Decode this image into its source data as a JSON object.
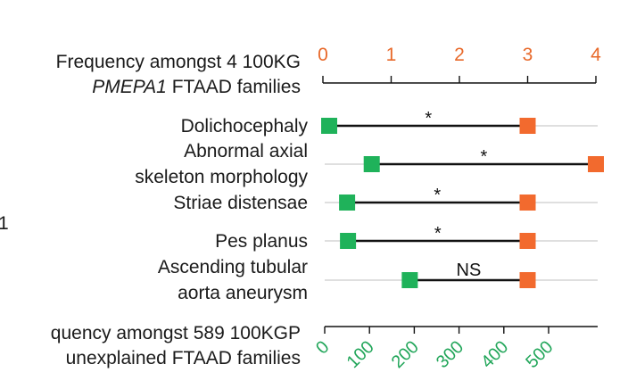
{
  "chart_data": {
    "type": "dumbbell",
    "top_axis": {
      "label_line1": "Frequency amongst 4 100KG",
      "label_line2_italic": "PMEPA1",
      "label_line2_rest": " FTAAD families",
      "ticks": [
        "0",
        "1",
        "2",
        "3",
        "4"
      ],
      "range": [
        0,
        4
      ],
      "color": "#e8692a"
    },
    "bottom_axis": {
      "label_line1": "quency amongst 589 100KGP",
      "label_line2": "unexplained FTAAD families",
      "ticks": [
        "0",
        "100",
        "200",
        "300",
        "400",
        "500"
      ],
      "range": [
        0,
        589
      ],
      "color": "#22a65a"
    },
    "left_edge_fragment": "1",
    "rows": [
      {
        "label_lines": [
          "Dolichocephaly"
        ],
        "bottom_value": 10,
        "top_value": 3,
        "significance": "*"
      },
      {
        "label_lines": [
          "Abnormal axial",
          "skeleton morphology"
        ],
        "bottom_value": 105,
        "top_value": 4,
        "significance": "*"
      },
      {
        "label_lines": [
          "Striae distensae"
        ],
        "bottom_value": 50,
        "top_value": 3,
        "significance": "*"
      },
      {
        "label_lines": [
          "Pes planus"
        ],
        "bottom_value": 52,
        "top_value": 3,
        "significance": "*"
      },
      {
        "label_lines": [
          "Ascending tubular",
          "aorta aneurysm"
        ],
        "bottom_value": 190,
        "top_value": 3,
        "significance": "NS"
      }
    ],
    "colors": {
      "top_marker": "#f26a2e",
      "bottom_marker": "#1fb25a",
      "line": "#111111",
      "grid": "#cccccc"
    }
  }
}
